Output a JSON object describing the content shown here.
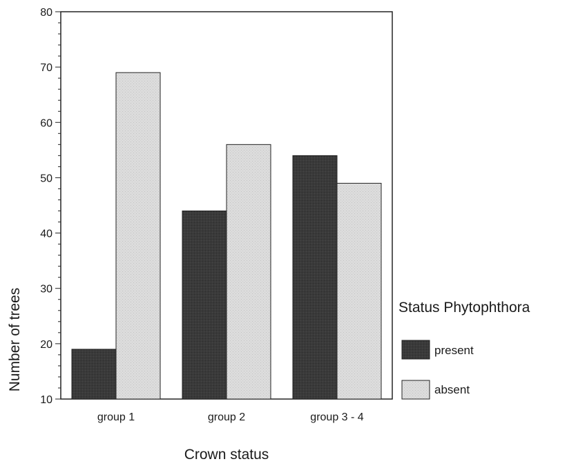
{
  "chart_data": {
    "type": "bar",
    "categories": [
      "group 1",
      "group 2",
      "group 3 - 4"
    ],
    "series": [
      {
        "name": "present",
        "values": [
          19,
          44,
          54
        ],
        "color": "#3a3a3a"
      },
      {
        "name": "absent",
        "values": [
          69,
          56,
          49
        ],
        "color": "#dcdcdc"
      }
    ],
    "xlabel": "Crown status",
    "ylabel": "Number of trees",
    "ylim": [
      10,
      80
    ],
    "yticks": [
      10,
      20,
      30,
      40,
      50,
      60,
      70,
      80
    ],
    "grid": false,
    "legend": {
      "title": "Status Phytophthora",
      "position": "right"
    }
  }
}
